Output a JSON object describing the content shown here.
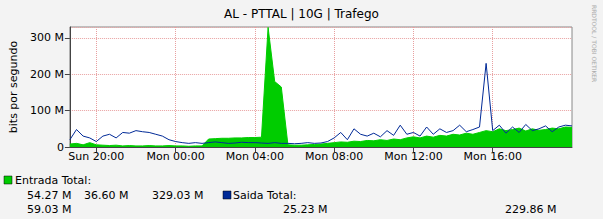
{
  "chart_data": {
    "type": "line",
    "title": "AL - PTTAL | 10G | Trafego",
    "y_label": "bits por segundo",
    "annotations": [
      "RRDTOOL / TOBI OETIKER"
    ],
    "categories": [
      null,
      null,
      null,
      null,
      "Sun 20:00",
      null,
      null,
      null,
      null,
      null,
      null,
      null,
      null,
      null,
      null,
      null,
      "Mon 00:00",
      null,
      null,
      null,
      null,
      null,
      null,
      null,
      null,
      null,
      null,
      null,
      "Mon 04:00",
      null,
      null,
      null,
      null,
      null,
      null,
      null,
      null,
      null,
      null,
      null,
      "Mon 08:00",
      null,
      null,
      null,
      null,
      null,
      null,
      null,
      null,
      null,
      null,
      null,
      "Mon 12:00",
      null,
      null,
      null,
      null,
      null,
      null,
      null,
      null,
      null,
      null,
      null,
      "Mon 16:00",
      null,
      null,
      null,
      null,
      null,
      null,
      null,
      null,
      null,
      null,
      null,
      null
    ],
    "series": [
      {
        "name": "Entrada Total:",
        "color": "#00cc00",
        "type": "area",
        "stats": [
          "54.27 M",
          "36.60 M",
          "329.03 M"
        ],
        "values": [
          8000000,
          10000000,
          6000000,
          12000000,
          6000000,
          5000000,
          4000000,
          5000000,
          3000000,
          4000000,
          3000000,
          3000000,
          4000000,
          3000000,
          3000000,
          4000000,
          3000000,
          3000000,
          2000000,
          3000000,
          3000000,
          22000000,
          23000000,
          24000000,
          24000000,
          25000000,
          25000000,
          26000000,
          26000000,
          27000000,
          329000000,
          180000000,
          165000000,
          6000000,
          5000000,
          5000000,
          6000000,
          7000000,
          8000000,
          10000000,
          12000000,
          14000000,
          13000000,
          16000000,
          15000000,
          18000000,
          17000000,
          20000000,
          18000000,
          22000000,
          20000000,
          25000000,
          28000000,
          25000000,
          30000000,
          27000000,
          32000000,
          30000000,
          35000000,
          33000000,
          38000000,
          35000000,
          40000000,
          45000000,
          42000000,
          50000000,
          45000000,
          48000000,
          52000000,
          44000000,
          50000000,
          46000000,
          48000000,
          52000000,
          50000000,
          55000000,
          54000000
        ]
      },
      {
        "name": "Saida Total:",
        "color": "#002a97",
        "type": "line",
        "stats": [
          "59.03 M",
          "25.23 M",
          "229.86 M"
        ],
        "values": [
          20000000,
          48000000,
          30000000,
          25000000,
          15000000,
          30000000,
          35000000,
          25000000,
          40000000,
          38000000,
          45000000,
          42000000,
          40000000,
          35000000,
          30000000,
          20000000,
          15000000,
          12000000,
          10000000,
          12000000,
          10000000,
          12000000,
          14000000,
          12000000,
          10000000,
          11000000,
          13000000,
          12000000,
          12000000,
          11000000,
          10000000,
          12000000,
          10000000,
          10000000,
          9000000,
          10000000,
          12000000,
          10000000,
          11000000,
          15000000,
          25000000,
          40000000,
          20000000,
          50000000,
          35000000,
          30000000,
          38000000,
          28000000,
          45000000,
          32000000,
          60000000,
          35000000,
          40000000,
          30000000,
          55000000,
          35000000,
          50000000,
          40000000,
          45000000,
          60000000,
          42000000,
          48000000,
          55000000,
          230000000,
          45000000,
          60000000,
          38000000,
          55000000,
          40000000,
          62000000,
          45000000,
          50000000,
          58000000,
          42000000,
          55000000,
          60000000,
          58000000
        ]
      }
    ],
    "ylim": [
      0,
      330000000
    ],
    "yticks": [
      0,
      {
        "value": 100000000,
        "label": "100 M"
      },
      {
        "value": 200000000,
        "label": "200 M"
      },
      {
        "value": 300000000,
        "label": "300 M"
      }
    ],
    "grid": true
  }
}
